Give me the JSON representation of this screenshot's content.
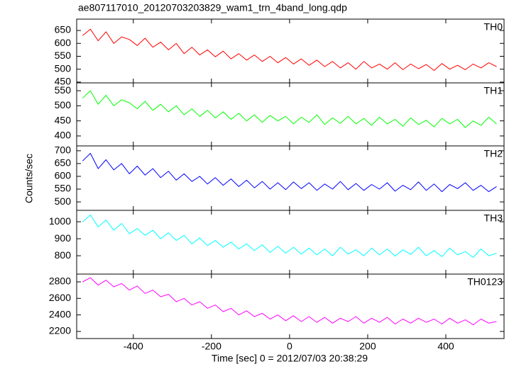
{
  "chart_data": [
    {
      "type": "line",
      "title": "ae807117010_20120703203829_wam1_trn_4band_long.qdp",
      "label": "TH0",
      "color": "#ff0000",
      "x": [
        -530,
        -510,
        -490,
        -470,
        -450,
        -430,
        -410,
        -390,
        -370,
        -350,
        -330,
        -310,
        -290,
        -270,
        -250,
        -230,
        -210,
        -190,
        -170,
        -150,
        -130,
        -110,
        -90,
        -70,
        -50,
        -30,
        -10,
        10,
        30,
        50,
        70,
        90,
        110,
        130,
        150,
        170,
        190,
        210,
        230,
        250,
        270,
        290,
        310,
        330,
        350,
        370,
        390,
        410,
        430,
        450,
        470,
        490,
        510,
        530
      ],
      "values": [
        630,
        655,
        610,
        645,
        600,
        625,
        615,
        592,
        620,
        585,
        605,
        575,
        600,
        560,
        585,
        555,
        575,
        548,
        570,
        540,
        560,
        535,
        555,
        530,
        550,
        525,
        545,
        520,
        540,
        515,
        535,
        510,
        530,
        505,
        525,
        500,
        530,
        505,
        520,
        500,
        525,
        498,
        520,
        502,
        518,
        495,
        522,
        500,
        515,
        498,
        520,
        505,
        525,
        510
      ],
      "xlim": [
        -545,
        549
      ],
      "xticks": [
        -400,
        -200,
        0,
        200,
        400
      ],
      "ylim": [
        447,
        694
      ],
      "yticks": [
        450,
        500,
        550,
        600,
        650
      ]
    },
    {
      "type": "line",
      "label": "TH1",
      "color": "#00ff00",
      "x": [
        -530,
        -510,
        -490,
        -470,
        -450,
        -430,
        -410,
        -390,
        -370,
        -350,
        -330,
        -310,
        -290,
        -270,
        -250,
        -230,
        -210,
        -190,
        -170,
        -150,
        -130,
        -110,
        -90,
        -70,
        -50,
        -30,
        -10,
        10,
        30,
        50,
        70,
        90,
        110,
        130,
        150,
        170,
        190,
        210,
        230,
        250,
        270,
        290,
        310,
        330,
        350,
        370,
        390,
        410,
        430,
        450,
        470,
        490,
        510,
        530
      ],
      "values": [
        525,
        550,
        505,
        535,
        500,
        520,
        510,
        490,
        515,
        485,
        505,
        480,
        500,
        470,
        490,
        465,
        485,
        460,
        480,
        455,
        475,
        450,
        470,
        445,
        468,
        450,
        465,
        440,
        462,
        445,
        470,
        438,
        460,
        442,
        465,
        440,
        458,
        435,
        462,
        440,
        455,
        432,
        460,
        438,
        452,
        430,
        458,
        440,
        455,
        428,
        450,
        435,
        462,
        440
      ],
      "xlim": [
        -545,
        549
      ],
      "xticks": [
        -400,
        -200,
        0,
        200,
        400
      ],
      "ylim": [
        367,
        576
      ],
      "yticks": [
        400,
        450,
        500,
        550
      ]
    },
    {
      "type": "line",
      "label": "TH2",
      "color": "#0000ff",
      "y_label": "Counts/sec",
      "x": [
        -530,
        -510,
        -490,
        -470,
        -450,
        -430,
        -410,
        -390,
        -370,
        -350,
        -330,
        -310,
        -290,
        -270,
        -250,
        -230,
        -210,
        -190,
        -170,
        -150,
        -130,
        -110,
        -90,
        -70,
        -50,
        -30,
        -10,
        10,
        30,
        50,
        70,
        90,
        110,
        130,
        150,
        170,
        190,
        210,
        230,
        250,
        270,
        290,
        310,
        330,
        350,
        370,
        390,
        410,
        430,
        450,
        470,
        490,
        510,
        530
      ],
      "values": [
        660,
        690,
        630,
        665,
        625,
        650,
        610,
        640,
        605,
        630,
        595,
        620,
        585,
        610,
        580,
        600,
        570,
        595,
        565,
        590,
        560,
        585,
        555,
        580,
        550,
        575,
        548,
        578,
        552,
        575,
        545,
        570,
        550,
        580,
        548,
        572,
        545,
        568,
        550,
        575,
        542,
        565,
        548,
        578,
        545,
        570,
        540,
        568,
        552,
        575,
        545,
        565,
        540,
        560
      ],
      "xlim": [
        -545,
        549
      ],
      "xticks": [
        -400,
        -200,
        0,
        200,
        400
      ],
      "ylim": [
        467,
        719
      ],
      "yticks": [
        500,
        550,
        600,
        650,
        700
      ]
    },
    {
      "type": "line",
      "label": "TH3",
      "color": "#00ffff",
      "x": [
        -530,
        -510,
        -490,
        -470,
        -450,
        -430,
        -410,
        -390,
        -370,
        -350,
        -330,
        -310,
        -290,
        -270,
        -250,
        -230,
        -210,
        -190,
        -170,
        -150,
        -130,
        -110,
        -90,
        -70,
        -50,
        -30,
        -10,
        10,
        30,
        50,
        70,
        90,
        110,
        130,
        150,
        170,
        190,
        210,
        230,
        250,
        270,
        290,
        310,
        330,
        350,
        370,
        390,
        410,
        430,
        450,
        470,
        490,
        510,
        530
      ],
      "values": [
        1000,
        1040,
        970,
        1010,
        950,
        990,
        930,
        960,
        920,
        950,
        900,
        935,
        890,
        920,
        870,
        905,
        860,
        890,
        850,
        880,
        840,
        870,
        830,
        865,
        820,
        855,
        815,
        850,
        810,
        845,
        805,
        840,
        800,
        850,
        810,
        835,
        800,
        845,
        805,
        840,
        798,
        835,
        808,
        850,
        800,
        830,
        795,
        845,
        805,
        825,
        790,
        840,
        800,
        815
      ],
      "xlim": [
        -545,
        549
      ],
      "xticks": [
        -400,
        -200,
        0,
        200,
        400
      ],
      "ylim": [
        692,
        1067
      ],
      "yticks": [
        800,
        900,
        1000
      ]
    },
    {
      "type": "line",
      "label": "TH0123",
      "color": "#ff00ff",
      "x_label": "Time [sec] 0 = 2012/07/03 20:38:29",
      "x": [
        -530,
        -510,
        -490,
        -470,
        -450,
        -430,
        -410,
        -390,
        -370,
        -350,
        -330,
        -310,
        -290,
        -270,
        -250,
        -230,
        -210,
        -190,
        -170,
        -150,
        -130,
        -110,
        -90,
        -70,
        -50,
        -30,
        -10,
        10,
        30,
        50,
        70,
        90,
        110,
        130,
        150,
        170,
        190,
        210,
        230,
        250,
        270,
        290,
        310,
        330,
        350,
        370,
        390,
        410,
        430,
        450,
        470,
        490,
        510,
        530
      ],
      "values": [
        2800,
        2850,
        2760,
        2820,
        2740,
        2780,
        2700,
        2750,
        2660,
        2700,
        2620,
        2650,
        2560,
        2600,
        2520,
        2560,
        2480,
        2520,
        2440,
        2480,
        2400,
        2450,
        2380,
        2420,
        2350,
        2400,
        2330,
        2390,
        2320,
        2380,
        2310,
        2370,
        2300,
        2360,
        2320,
        2380,
        2300,
        2360,
        2310,
        2370,
        2290,
        2350,
        2300,
        2360,
        2310,
        2350,
        2290,
        2360,
        2300,
        2340,
        2280,
        2350,
        2300,
        2320
      ],
      "xlim": [
        -545,
        549
      ],
      "xticks": [
        -400,
        -200,
        0,
        200,
        400
      ],
      "ylim": [
        2114,
        2894
      ],
      "yticks": [
        2200,
        2400,
        2600,
        2800
      ]
    }
  ]
}
